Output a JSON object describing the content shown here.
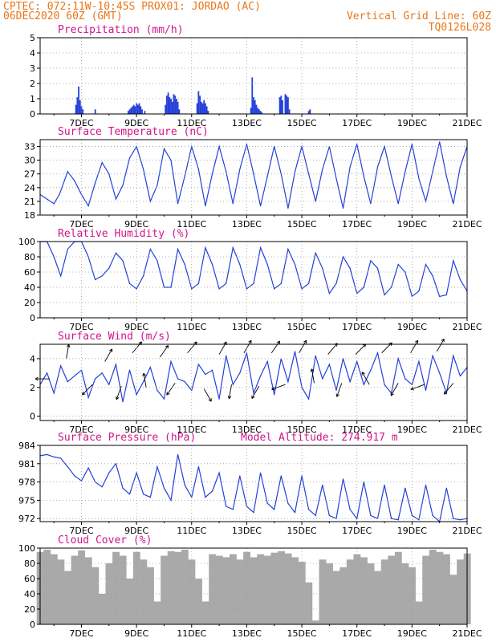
{
  "header": {
    "line1": "CPTEC:   072:11W-10:45S   PROX01: JORDAO (AC)",
    "line2_left": "06DEC2020 60Z (GMT)",
    "line2_right": "Vertical Grid Line: 60Z",
    "line3_right": "TQ0126L028"
  },
  "colors": {
    "line": "#2440d8",
    "cloud": "#a9a9a9",
    "header": "#e8761a",
    "title": "#d1148a",
    "grid": "#9a9a9a"
  },
  "chart_data": [
    {
      "id": "precip",
      "type": "bar",
      "title": "Precipitation (mm/h)",
      "ylim": [
        0,
        5
      ],
      "yticks": [
        0,
        1,
        2,
        3,
        4,
        5
      ],
      "xlim": [
        5.5,
        21
      ],
      "x_ticks": [
        7,
        9,
        11,
        13,
        15,
        17,
        19,
        21
      ],
      "x_tick_labels": [
        "7DEC",
        "9DEC",
        "11DEC",
        "13DEC",
        "15DEC",
        "17DEC",
        "19DEC",
        "21DEC"
      ],
      "x": [
        6.8,
        6.85,
        6.9,
        6.95,
        7.0,
        7.05,
        7.5,
        8.7,
        8.75,
        8.8,
        8.85,
        8.9,
        8.95,
        9.0,
        9.05,
        9.1,
        9.15,
        9.2,
        9.3,
        10.05,
        10.1,
        10.15,
        10.2,
        10.25,
        10.3,
        10.35,
        10.4,
        10.45,
        10.5,
        10.55,
        11.2,
        11.25,
        11.3,
        11.35,
        11.4,
        11.45,
        11.5,
        11.55,
        11.6,
        13.15,
        13.2,
        13.25,
        13.3,
        13.35,
        13.4,
        13.45,
        13.5,
        13.55,
        14.2,
        14.25,
        14.3,
        14.4,
        14.45,
        14.5,
        14.55,
        15.25,
        15.3
      ],
      "values": [
        0.6,
        1.1,
        1.8,
        0.9,
        0.5,
        0.3,
        0.3,
        0.2,
        0.3,
        0.4,
        0.5,
        0.6,
        0.5,
        0.7,
        0.6,
        0.7,
        0.5,
        0.3,
        0.2,
        0.6,
        1.2,
        1.4,
        1.1,
        1.0,
        0.8,
        1.3,
        1.2,
        1.0,
        0.8,
        0.3,
        0.7,
        1.5,
        1.2,
        0.8,
        0.7,
        0.9,
        0.7,
        0.5,
        0.2,
        0.4,
        2.4,
        1.1,
        0.9,
        0.6,
        0.4,
        0.3,
        0.2,
        0.1,
        1.1,
        1.2,
        0.9,
        1.3,
        1.2,
        1.1,
        0.3,
        0.2,
        0.3
      ]
    },
    {
      "id": "temp",
      "type": "line",
      "title": "Surface Temperature (nC)",
      "ylim": [
        18,
        34.5
      ],
      "yticks": [
        18,
        21,
        24,
        27,
        30,
        33
      ],
      "xlim": [
        5.5,
        21
      ],
      "x_ticks": [
        7,
        9,
        11,
        13,
        15,
        17,
        19,
        21
      ],
      "x_tick_labels": [
        "7DEC",
        "9DEC",
        "11DEC",
        "13DEC",
        "15DEC",
        "17DEC",
        "19DEC",
        "21DEC"
      ],
      "x": [
        5.5,
        5.75,
        6.0,
        6.2,
        6.5,
        6.75,
        7.0,
        7.25,
        7.5,
        7.75,
        8.0,
        8.25,
        8.5,
        8.75,
        9.0,
        9.25,
        9.5,
        9.75,
        10.0,
        10.25,
        10.5,
        10.75,
        11.0,
        11.25,
        11.5,
        11.75,
        12.0,
        12.25,
        12.5,
        12.75,
        13.0,
        13.25,
        13.5,
        13.75,
        14.0,
        14.25,
        14.5,
        14.75,
        15.0,
        15.25,
        15.5,
        15.75,
        16.0,
        16.25,
        16.5,
        16.75,
        17.0,
        17.25,
        17.5,
        17.75,
        18.0,
        18.25,
        18.5,
        18.75,
        19.0,
        19.25,
        19.5,
        19.75,
        20.0,
        20.25,
        20.5,
        20.75,
        21.0
      ],
      "values": [
        22.5,
        21.5,
        20.5,
        22.5,
        27.5,
        25.5,
        22.5,
        20.0,
        25.0,
        29.5,
        27.0,
        21.5,
        24.5,
        30.5,
        33.0,
        28.0,
        21.0,
        24.5,
        32.5,
        30.0,
        20.5,
        26.5,
        33.0,
        28.0,
        20.0,
        27.0,
        33.0,
        27.5,
        20.5,
        28.0,
        33.5,
        27.0,
        20.0,
        26.5,
        33.0,
        27.0,
        19.5,
        27.5,
        33.0,
        27.0,
        21.0,
        28.0,
        33.0,
        26.0,
        19.5,
        28.5,
        33.5,
        26.5,
        20.5,
        28.5,
        33.0,
        26.5,
        20.5,
        27.5,
        33.5,
        26.0,
        21.0,
        27.5,
        34.0,
        26.5,
        20.5,
        28.5,
        33.0
      ]
    },
    {
      "id": "rh",
      "type": "line",
      "title": "Relative Humidity (%)",
      "ylim": [
        0,
        100
      ],
      "yticks": [
        0,
        20,
        40,
        60,
        80,
        100
      ],
      "xlim": [
        5.5,
        21
      ],
      "x_ticks": [
        7,
        9,
        11,
        13,
        15,
        17,
        19,
        21
      ],
      "x_tick_labels": [
        "7DEC",
        "9DEC",
        "11DEC",
        "13DEC",
        "15DEC",
        "17DEC",
        "19DEC",
        "21DEC"
      ],
      "x": [
        5.5,
        5.75,
        6.0,
        6.25,
        6.5,
        6.75,
        7.0,
        7.25,
        7.5,
        7.75,
        8.0,
        8.25,
        8.5,
        8.75,
        9.0,
        9.25,
        9.5,
        9.75,
        10.0,
        10.25,
        10.5,
        10.75,
        11.0,
        11.25,
        11.5,
        11.75,
        12.0,
        12.25,
        12.5,
        12.75,
        13.0,
        13.25,
        13.5,
        13.75,
        14.0,
        14.25,
        14.5,
        14.75,
        15.0,
        15.25,
        15.5,
        15.75,
        16.0,
        16.25,
        16.5,
        16.75,
        17.0,
        17.25,
        17.5,
        17.75,
        18.0,
        18.25,
        18.5,
        18.75,
        19.0,
        19.25,
        19.5,
        19.75,
        20.0,
        20.25,
        20.5,
        20.75,
        21.0
      ],
      "values": [
        100,
        100,
        80,
        55,
        90,
        100,
        100,
        80,
        50,
        55,
        65,
        85,
        75,
        45,
        38,
        55,
        90,
        75,
        40,
        40,
        90,
        70,
        38,
        45,
        92,
        70,
        38,
        45,
        92,
        70,
        38,
        45,
        92,
        70,
        38,
        45,
        90,
        70,
        38,
        45,
        85,
        65,
        32,
        45,
        80,
        65,
        32,
        40,
        75,
        65,
        30,
        40,
        70,
        60,
        28,
        35,
        70,
        55,
        28,
        30,
        75,
        50,
        35
      ]
    },
    {
      "id": "wind",
      "type": "line",
      "title": "Surface Wind (m/s)",
      "ylim": [
        -0.3,
        5
      ],
      "yticks": [
        0,
        2,
        4
      ],
      "xlim": [
        5.5,
        21
      ],
      "x_ticks": [
        7,
        9,
        11,
        13,
        15,
        17,
        19,
        21
      ],
      "x_tick_labels": [
        "7DEC",
        "9DEC",
        "11DEC",
        "13DEC",
        "15DEC",
        "17DEC",
        "19DEC",
        "21DEC"
      ],
      "x": [
        5.5,
        5.75,
        6.0,
        6.25,
        6.5,
        6.75,
        7.0,
        7.25,
        7.5,
        7.75,
        8.0,
        8.25,
        8.5,
        8.75,
        9.0,
        9.25,
        9.5,
        9.75,
        10.0,
        10.25,
        10.5,
        10.75,
        11.0,
        11.25,
        11.5,
        11.75,
        12.0,
        12.25,
        12.5,
        12.75,
        13.0,
        13.25,
        13.5,
        13.75,
        14.0,
        14.25,
        14.5,
        14.75,
        15.0,
        15.25,
        15.5,
        15.75,
        16.0,
        16.25,
        16.5,
        16.75,
        17.0,
        17.25,
        17.5,
        17.75,
        18.0,
        18.25,
        18.5,
        18.75,
        19.0,
        19.25,
        19.5,
        19.75,
        20.0,
        20.25,
        20.5,
        20.75,
        21.0
      ],
      "values": [
        2.2,
        3.0,
        1.6,
        3.5,
        2.4,
        2.8,
        3.2,
        1.3,
        2.6,
        3.0,
        2.2,
        3.6,
        1.0,
        3.2,
        1.5,
        2.4,
        3.4,
        1.8,
        1.2,
        3.8,
        2.6,
        2.4,
        1.8,
        3.6,
        2.9,
        3.2,
        1.2,
        4.2,
        2.2,
        3.0,
        4.4,
        1.6,
        2.8,
        3.8,
        1.5,
        4.0,
        2.4,
        4.5,
        2.0,
        1.2,
        4.2,
        2.6,
        3.6,
        1.8,
        4.0,
        2.4,
        3.8,
        2.2,
        3.2,
        4.4,
        2.2,
        1.6,
        4.0,
        2.6,
        2.2,
        3.8,
        1.8,
        4.2,
        3.0,
        1.6,
        4.2,
        2.8,
        3.4
      ],
      "arrows": {
        "x": [
          5.85,
          6.45,
          7.4,
          7.85,
          8.45,
          8.85,
          9.35,
          9.85,
          10.4,
          10.85,
          11.45,
          12.0,
          12.45,
          12.9,
          13.45,
          13.9,
          14.4,
          14.9,
          15.45,
          15.95,
          16.45,
          16.95,
          17.45,
          17.9,
          18.5,
          18.95,
          19.45,
          19.9,
          20.5
        ],
        "y": [
          2.6,
          4.0,
          2.2,
          3.8,
          2.1,
          4.4,
          2.0,
          4.1,
          2.3,
          4.4,
          1.9,
          4.3,
          2.2,
          4.4,
          2.1,
          4.4,
          2.2,
          4.4,
          2.3,
          4.3,
          2.3,
          4.3,
          2.2,
          4.4,
          2.3,
          4.4,
          2.2,
          4.5,
          2.3
        ],
        "dir": [
          180,
          80,
          225,
          60,
          250,
          50,
          100,
          55,
          235,
          50,
          300,
          60,
          260,
          60,
          240,
          55,
          200,
          60,
          100,
          50,
          250,
          45,
          120,
          45,
          240,
          60,
          200,
          60,
          230
        ]
      }
    },
    {
      "id": "pressure",
      "type": "line",
      "title": "Surface Pressure (hPa)",
      "title_right": "Model Altitude: 274.917  m",
      "ylim": [
        971.5,
        984
      ],
      "yticks": [
        972,
        975,
        978,
        981,
        984
      ],
      "xlim": [
        5.5,
        21
      ],
      "x_ticks": [
        7,
        9,
        11,
        13,
        15,
        17,
        19,
        21
      ],
      "x_tick_labels": [
        "7DEC",
        "9DEC",
        "11DEC",
        "13DEC",
        "15DEC",
        "17DEC",
        "19DEC",
        "21DEC"
      ],
      "x": [
        5.5,
        5.75,
        6.0,
        6.25,
        6.5,
        6.75,
        7.0,
        7.25,
        7.5,
        7.75,
        8.0,
        8.25,
        8.5,
        8.75,
        9.0,
        9.25,
        9.5,
        9.75,
        10.0,
        10.25,
        10.5,
        10.75,
        11.0,
        11.25,
        11.5,
        11.75,
        12.0,
        12.25,
        12.5,
        12.75,
        13.0,
        13.25,
        13.5,
        13.75,
        14.0,
        14.25,
        14.5,
        14.75,
        15.0,
        15.25,
        15.5,
        15.75,
        16.0,
        16.25,
        16.5,
        16.75,
        17.0,
        17.25,
        17.5,
        17.75,
        18.0,
        18.25,
        18.5,
        18.75,
        19.0,
        19.25,
        19.5,
        19.75,
        20.0,
        20.25,
        20.5,
        20.75,
        21.0
      ],
      "values": [
        982.3,
        982.5,
        982.1,
        981.9,
        980.5,
        979.0,
        978.2,
        980.3,
        978.0,
        977.2,
        979.5,
        981.0,
        977.0,
        976.0,
        979.5,
        976.0,
        975.5,
        980.5,
        977.0,
        975.0,
        982.5,
        977.5,
        975.5,
        980.5,
        975.5,
        976.5,
        979.5,
        974.0,
        973.5,
        979.0,
        974.0,
        973.0,
        979.5,
        974.5,
        973.5,
        979.0,
        974.5,
        973.0,
        979.0,
        973.5,
        972.5,
        977.5,
        972.5,
        972.0,
        978.5,
        973.5,
        972.0,
        978.0,
        972.5,
        972.0,
        977.5,
        972.0,
        971.8,
        977.0,
        972.5,
        971.8,
        977.5,
        972.5,
        971.5,
        977.0,
        972.0,
        971.8,
        972.0
      ]
    },
    {
      "id": "cloud",
      "type": "area",
      "title": "Cloud Cover (%)",
      "ylim": [
        0,
        100
      ],
      "yticks": [
        0,
        20,
        40,
        60,
        80,
        100
      ],
      "xlim": [
        5.5,
        21
      ],
      "x_ticks": [
        7,
        9,
        11,
        13,
        15,
        17,
        19,
        21
      ],
      "x_tick_labels": [
        "7DEC",
        "9DEC",
        "11DEC",
        "13DEC",
        "15DEC",
        "17DEC",
        "19DEC",
        "21DEC"
      ],
      "x": [
        5.5,
        5.75,
        6.0,
        6.25,
        6.5,
        6.75,
        7.0,
        7.25,
        7.5,
        7.75,
        8.0,
        8.25,
        8.5,
        8.75,
        9.0,
        9.25,
        9.5,
        9.75,
        10.0,
        10.25,
        10.5,
        10.75,
        11.0,
        11.25,
        11.5,
        11.75,
        12.0,
        12.25,
        12.5,
        12.75,
        13.0,
        13.25,
        13.5,
        13.75,
        14.0,
        14.25,
        14.5,
        14.75,
        15.0,
        15.25,
        15.5,
        15.75,
        16.0,
        16.25,
        16.5,
        16.75,
        17.0,
        17.25,
        17.5,
        17.75,
        18.0,
        18.25,
        18.5,
        18.75,
        19.0,
        19.25,
        19.5,
        19.75,
        20.0,
        20.25,
        20.5,
        20.75,
        21.0
      ],
      "values": [
        95,
        98,
        92,
        85,
        70,
        90,
        97,
        88,
        75,
        40,
        80,
        95,
        90,
        60,
        95,
        85,
        75,
        30,
        90,
        96,
        95,
        98,
        85,
        60,
        30,
        92,
        90,
        88,
        92,
        85,
        95,
        88,
        92,
        90,
        94,
        96,
        93,
        88,
        82,
        55,
        5,
        85,
        80,
        70,
        75,
        85,
        92,
        88,
        80,
        70,
        85,
        90,
        95,
        80,
        75,
        30,
        90,
        98,
        95,
        92,
        65,
        85,
        93
      ]
    }
  ]
}
